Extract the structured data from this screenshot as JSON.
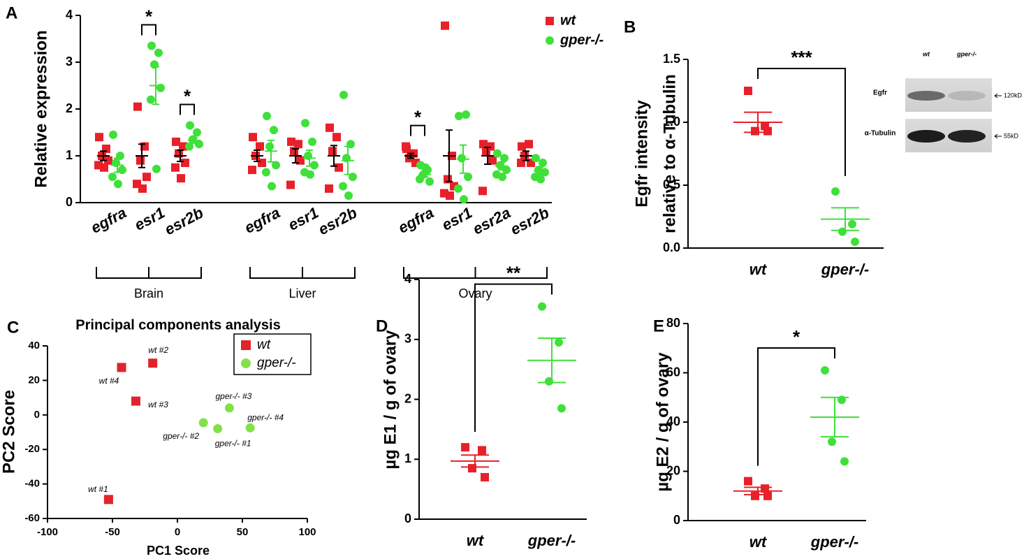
{
  "chart_data": [
    {
      "panel": "A",
      "type": "dotplot",
      "ylabel": "Relative expression",
      "ylim": [
        0,
        4
      ],
      "yticks": [
        0,
        1,
        2,
        3,
        4
      ],
      "groups": [
        {
          "label": "Brain",
          "categories": [
            "egfra",
            "esr1",
            "esr2b"
          ]
        },
        {
          "label": "Liver",
          "categories": [
            "egfra",
            "esr1",
            "esr2b"
          ]
        },
        {
          "label": "Ovary",
          "categories": [
            "egfra",
            "esr1",
            "esr2a",
            "esr2b"
          ]
        }
      ],
      "significance": [
        null,
        "*",
        "*",
        null,
        null,
        null,
        "*",
        null,
        null,
        null
      ],
      "legend": "upper right",
      "series": [
        {
          "name": "wt",
          "color": "#e8202a",
          "marker": "square",
          "errorbar_color": "#000000",
          "values": [
            [
              1.4,
              1.15,
              1.0,
              0.9,
              0.8,
              0.75
            ],
            [
              2.05,
              1.2,
              0.9,
              0.55,
              0.4,
              0.3
            ],
            [
              1.3,
              1.2,
              1.05,
              0.85,
              0.75,
              0.52
            ],
            [
              1.4,
              1.2,
              1.0,
              0.85,
              0.7
            ],
            [
              1.3,
              1.25,
              1.1,
              0.9,
              0.38
            ],
            [
              1.6,
              1.4,
              1.1,
              0.75,
              0.3
            ],
            [
              1.15,
              1.05,
              0.95,
              0.85,
              1.2
            ],
            [
              3.78,
              1.0,
              0.5,
              0.35,
              0.2,
              0.15
            ],
            [
              1.25,
              1.2,
              1.1,
              0.9,
              0.25
            ],
            [
              1.2,
              1.25,
              1.0,
              0.85,
              0.85
            ]
          ],
          "means": [
            1.0,
            1.0,
            1.0,
            1.0,
            1.0,
            1.0,
            1.0,
            1.0,
            1.0,
            1.0
          ],
          "errors": [
            0.1,
            0.25,
            0.12,
            0.12,
            0.15,
            0.22,
            0.05,
            0.55,
            0.18,
            0.1
          ]
        },
        {
          "name": "gper-/-",
          "color": "#3fe03a",
          "marker": "circle",
          "errorbar_color": "#3fe03a",
          "values": [
            [
              1.45,
              1.0,
              0.85,
              0.7,
              0.55,
              0.4
            ],
            [
              3.35,
              3.2,
              2.95,
              2.45,
              2.2,
              0.72
            ],
            [
              1.65,
              1.5,
              1.35,
              1.25,
              1.2
            ],
            [
              1.85,
              1.55,
              1.2,
              0.8,
              0.65,
              0.35
            ],
            [
              1.7,
              1.3,
              1.0,
              0.8,
              0.65,
              0.6
            ],
            [
              2.3,
              1.25,
              0.95,
              0.55,
              0.35,
              0.15
            ],
            [
              0.8,
              0.7,
              0.6,
              0.45,
              0.5,
              0.75
            ],
            [
              1.85,
              1.88,
              0.95,
              0.55,
              0.3,
              0.07
            ],
            [
              1.05,
              0.95,
              0.8,
              0.7,
              0.6,
              0.55
            ],
            [
              0.95,
              0.85,
              0.7,
              0.65,
              0.55,
              0.5
            ]
          ],
          "means": [
            0.8,
            2.5,
            1.33,
            1.1,
            0.95,
            0.9,
            0.6,
            0.93,
            0.78,
            0.68
          ],
          "errors": [
            0.15,
            0.4,
            0.06,
            0.23,
            0.17,
            0.3,
            0.05,
            0.3,
            0.08,
            0.08
          ]
        }
      ]
    },
    {
      "panel": "B",
      "type": "strip",
      "ylabel": [
        "Egfr  intensity",
        "relative to α-Tubulin"
      ],
      "ylim": [
        0,
        1.5
      ],
      "yticks": [
        {
          "value": 0,
          "label": "0.0"
        },
        {
          "value": 0.5,
          "label": "0.5"
        },
        {
          "value": 1,
          "label": "1.0"
        },
        {
          "value": 1.5,
          "label": "1.5"
        }
      ],
      "categories": [
        "wt",
        "gper-/-"
      ],
      "colors": [
        "#e8202a",
        "#3fe03a"
      ],
      "markers": [
        "square",
        "circle"
      ],
      "values": [
        [
          1.25,
          0.97,
          0.93,
          0.93
        ],
        [
          0.45,
          0.19,
          0.13,
          0.05
        ]
      ],
      "means": [
        1.0,
        0.23
      ],
      "errors": [
        0.08,
        0.09
      ],
      "significance": "***",
      "blot": {
        "lanes": [
          "wt",
          "gper-/-"
        ],
        "bands": [
          {
            "name": "Egfr",
            "size": "120kD"
          },
          {
            "name": "α-Tubulin",
            "size": "55kD"
          }
        ]
      }
    },
    {
      "panel": "C",
      "type": "scatter",
      "title": "Principal components analysis",
      "xlabel": "PC1 Score",
      "ylabel": "PC2 Score",
      "xlim": [
        -100,
        100
      ],
      "xticks": [
        -100,
        -50,
        0,
        50,
        100
      ],
      "ylim": [
        -60,
        40
      ],
      "yticks": [
        -60,
        -40,
        -20,
        0,
        20,
        40
      ],
      "legend": "upper right",
      "series": [
        {
          "name": "wt",
          "color": "#e0242c",
          "marker": "square",
          "x": [
            -53,
            -19,
            -32,
            -43
          ],
          "values": [
            -49,
            30,
            8,
            27.5
          ],
          "point_labels": [
            "wt #1",
            "wt #2",
            "wt #3",
            "wt #4"
          ]
        },
        {
          "name": "gper-/-",
          "color": "#84e04a",
          "marker": "circle",
          "x": [
            31,
            20,
            40,
            56
          ],
          "values": [
            -8,
            -4.5,
            4,
            -7.5
          ],
          "point_labels": [
            "gper-/- #1",
            "gper-/- #2",
            "gper-/- #3",
            "gper-/- #4"
          ]
        }
      ]
    },
    {
      "panel": "D",
      "type": "strip",
      "ylabel": "µg E1 / g of ovary",
      "ylim": [
        0,
        4
      ],
      "yticks": [
        0,
        1,
        2,
        3,
        4
      ],
      "categories": [
        "wt",
        "gper-/-"
      ],
      "colors": [
        "#e8202a",
        "#3fe03a"
      ],
      "markers": [
        "square",
        "circle"
      ],
      "values": [
        [
          1.2,
          1.15,
          0.85,
          0.7
        ],
        [
          3.55,
          2.95,
          2.3,
          1.85
        ]
      ],
      "means": [
        0.97,
        2.65
      ],
      "errors": [
        0.1,
        0.37
      ],
      "significance": "**"
    },
    {
      "panel": "E",
      "type": "strip",
      "ylabel": "µg E2 / g of ovary",
      "ylim": [
        0,
        80
      ],
      "yticks": [
        0,
        20,
        40,
        60,
        80
      ],
      "categories": [
        "wt",
        "gper-/-"
      ],
      "colors": [
        "#e8202a",
        "#3fe03a"
      ],
      "markers": [
        "square",
        "circle"
      ],
      "values": [
        [
          16,
          13,
          10,
          10
        ],
        [
          61,
          49,
          32,
          24
        ]
      ],
      "means": [
        12,
        42
      ],
      "errors": [
        1.5,
        8
      ],
      "significance": "*"
    }
  ]
}
